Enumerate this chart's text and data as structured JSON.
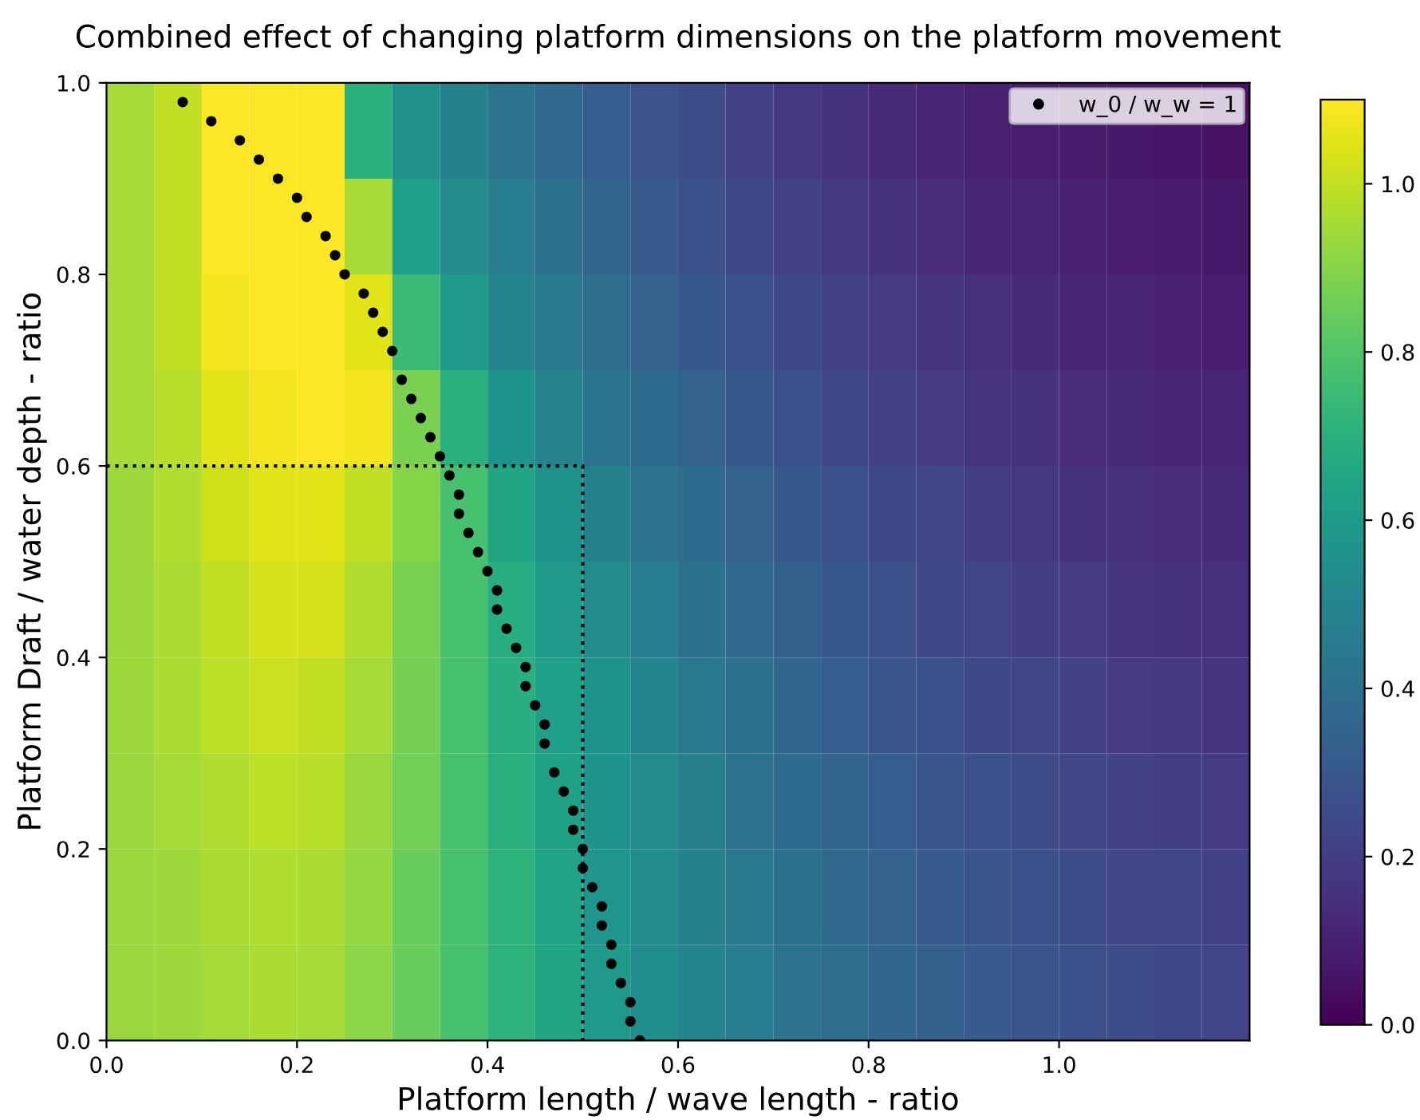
{
  "chart_data": {
    "type": "heatmap",
    "title": "Combined effect of changing platform dimensions on the platform movement",
    "xlabel": "Platform length / wave length - ratio",
    "ylabel": "Platform Draft / water depth - ratio",
    "x": [
      0.025,
      0.075,
      0.125,
      0.175,
      0.225,
      0.275,
      0.325,
      0.375,
      0.425,
      0.475,
      0.525,
      0.575,
      0.625,
      0.675,
      0.725,
      0.775,
      0.825,
      0.875,
      0.925,
      0.975,
      1.025,
      1.075,
      1.125,
      1.175
    ],
    "y": [
      0.95,
      0.85,
      0.75,
      0.65,
      0.55,
      0.45,
      0.35,
      0.25,
      0.15,
      0.05
    ],
    "cells": [
      [
        0.95,
        1.0,
        1.1,
        1.1,
        1.1,
        0.7,
        0.55,
        0.48,
        0.42,
        0.37,
        0.32,
        0.28,
        0.25,
        0.21,
        0.18,
        0.16,
        0.13,
        0.12,
        0.1,
        0.09,
        0.08,
        0.07,
        0.06,
        0.05
      ],
      [
        0.95,
        1.0,
        1.1,
        1.1,
        1.1,
        0.95,
        0.62,
        0.52,
        0.46,
        0.4,
        0.35,
        0.31,
        0.27,
        0.24,
        0.21,
        0.18,
        0.16,
        0.14,
        0.12,
        0.11,
        0.1,
        0.09,
        0.08,
        0.07
      ],
      [
        0.95,
        1.0,
        1.08,
        1.1,
        1.1,
        1.05,
        0.75,
        0.6,
        0.5,
        0.44,
        0.39,
        0.34,
        0.3,
        0.27,
        0.24,
        0.21,
        0.19,
        0.17,
        0.15,
        0.13,
        0.12,
        0.11,
        0.1,
        0.09
      ],
      [
        0.95,
        0.98,
        1.05,
        1.08,
        1.1,
        1.08,
        0.88,
        0.7,
        0.57,
        0.49,
        0.43,
        0.38,
        0.34,
        0.3,
        0.27,
        0.24,
        0.21,
        0.19,
        0.17,
        0.16,
        0.14,
        0.13,
        0.12,
        0.11
      ],
      [
        0.94,
        0.97,
        1.02,
        1.05,
        1.05,
        1.0,
        0.9,
        0.78,
        0.65,
        0.56,
        0.48,
        0.42,
        0.38,
        0.34,
        0.3,
        0.27,
        0.24,
        0.22,
        0.2,
        0.18,
        0.16,
        0.15,
        0.14,
        0.13
      ],
      [
        0.94,
        0.96,
        1.0,
        1.03,
        1.03,
        0.97,
        0.88,
        0.78,
        0.68,
        0.6,
        0.53,
        0.46,
        0.41,
        0.37,
        0.33,
        0.3,
        0.27,
        0.24,
        0.22,
        0.2,
        0.19,
        0.17,
        0.16,
        0.15
      ],
      [
        0.94,
        0.96,
        0.99,
        1.01,
        1.0,
        0.95,
        0.87,
        0.78,
        0.69,
        0.62,
        0.56,
        0.5,
        0.44,
        0.4,
        0.36,
        0.32,
        0.29,
        0.27,
        0.24,
        0.22,
        0.21,
        0.19,
        0.18,
        0.17
      ],
      [
        0.93,
        0.95,
        0.97,
        0.99,
        0.98,
        0.93,
        0.86,
        0.78,
        0.7,
        0.63,
        0.57,
        0.52,
        0.47,
        0.42,
        0.38,
        0.35,
        0.32,
        0.29,
        0.27,
        0.25,
        0.23,
        0.21,
        0.2,
        0.19
      ],
      [
        0.93,
        0.94,
        0.96,
        0.97,
        0.96,
        0.92,
        0.85,
        0.78,
        0.71,
        0.64,
        0.58,
        0.53,
        0.48,
        0.44,
        0.4,
        0.37,
        0.34,
        0.31,
        0.29,
        0.27,
        0.25,
        0.23,
        0.22,
        0.21
      ],
      [
        0.93,
        0.94,
        0.95,
        0.96,
        0.95,
        0.91,
        0.85,
        0.78,
        0.71,
        0.65,
        0.59,
        0.54,
        0.5,
        0.46,
        0.42,
        0.39,
        0.36,
        0.33,
        0.31,
        0.29,
        0.27,
        0.25,
        0.24,
        0.22
      ]
    ],
    "xlim": [
      0,
      1.2
    ],
    "ylim": [
      0,
      1
    ],
    "xticks": [
      {
        "value": 0,
        "label": "0.0"
      },
      {
        "value": 0.2,
        "label": "0.2"
      },
      {
        "value": 0.4,
        "label": "0.4"
      },
      {
        "value": 0.6,
        "label": "0.6"
      },
      {
        "value": 0.8,
        "label": "0.8"
      },
      {
        "value": 1.0,
        "label": "1.0"
      }
    ],
    "yticks": [
      {
        "value": 0,
        "label": "0.0"
      },
      {
        "value": 0.2,
        "label": "0.2"
      },
      {
        "value": 0.4,
        "label": "0.4"
      },
      {
        "value": 0.6,
        "label": "0.6"
      },
      {
        "value": 0.8,
        "label": "0.8"
      },
      {
        "value": 1.0,
        "label": "1.0"
      }
    ],
    "clim": [
      0,
      1.1
    ],
    "cticks": [
      {
        "value": 0,
        "label": "0.0"
      },
      {
        "value": 0.2,
        "label": "0.2"
      },
      {
        "value": 0.4,
        "label": "0.4"
      },
      {
        "value": 0.6,
        "label": "0.6"
      },
      {
        "value": 0.8,
        "label": "0.8"
      },
      {
        "value": 1.0,
        "label": "1.0"
      }
    ],
    "series": [
      {
        "type": "line",
        "color": "#000000",
        "line_style": "dotted",
        "x": [
          0,
          0.5,
          0.5
        ],
        "values": [
          0.6,
          0.6,
          0
        ]
      },
      {
        "type": "scatter",
        "name": "w_0 / w_w = 1",
        "color": "#000000",
        "marker": "circle",
        "x": [
          0.08,
          0.11,
          0.14,
          0.16,
          0.18,
          0.2,
          0.21,
          0.23,
          0.24,
          0.25,
          0.27,
          0.28,
          0.29,
          0.3,
          0.31,
          0.32,
          0.33,
          0.34,
          0.35,
          0.36,
          0.37,
          0.37,
          0.38,
          0.39,
          0.4,
          0.41,
          0.41,
          0.42,
          0.43,
          0.44,
          0.44,
          0.45,
          0.46,
          0.46,
          0.47,
          0.48,
          0.49,
          0.49,
          0.5,
          0.5,
          0.51,
          0.52,
          0.52,
          0.53,
          0.53,
          0.54,
          0.55,
          0.55,
          0.56
        ],
        "values": [
          0.98,
          0.96,
          0.94,
          0.92,
          0.9,
          0.88,
          0.86,
          0.84,
          0.82,
          0.8,
          0.78,
          0.76,
          0.74,
          0.72,
          0.69,
          0.67,
          0.65,
          0.63,
          0.61,
          0.59,
          0.57,
          0.55,
          0.53,
          0.51,
          0.49,
          0.47,
          0.45,
          0.43,
          0.41,
          0.39,
          0.37,
          0.35,
          0.33,
          0.31,
          0.28,
          0.26,
          0.24,
          0.22,
          0.2,
          0.18,
          0.16,
          0.14,
          0.12,
          0.1,
          0.08,
          0.06,
          0.04,
          0.02,
          0.0
        ]
      }
    ],
    "legend": "top right"
  }
}
